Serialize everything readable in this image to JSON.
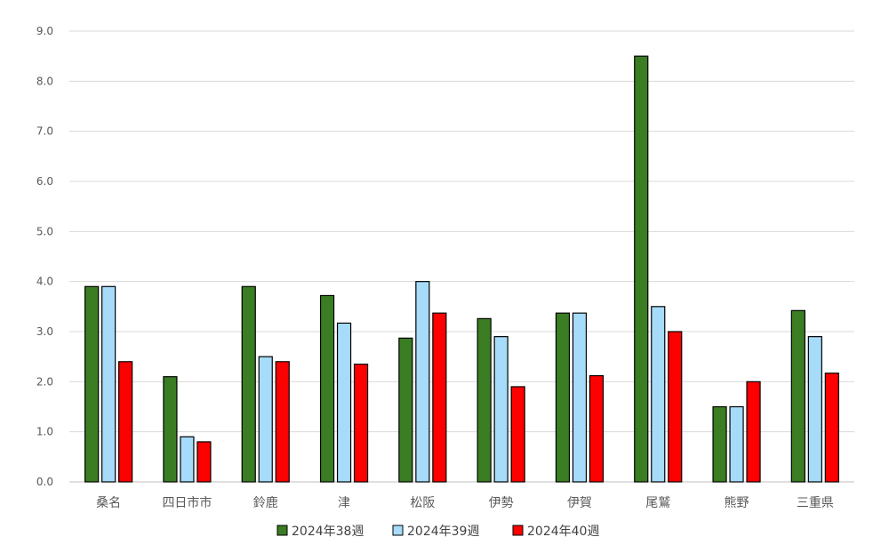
{
  "chart_data": {
    "type": "bar",
    "categories": [
      "桑名",
      "四日市市",
      "鈴鹿",
      "津",
      "松阪",
      "伊勢",
      "伊賀",
      "尾鷲",
      "熊野",
      "三重県"
    ],
    "series": [
      {
        "name": "2024年38週",
        "color": "#3a7d22",
        "values": [
          3.9,
          2.1,
          3.9,
          3.72,
          2.87,
          3.26,
          3.37,
          8.5,
          1.5,
          3.42
        ]
      },
      {
        "name": "2024年39週",
        "color": "#a6dcf9",
        "values": [
          3.9,
          0.9,
          2.5,
          3.17,
          4.0,
          2.9,
          3.37,
          3.5,
          1.5,
          2.9
        ]
      },
      {
        "name": "2024年40週",
        "color": "#ff0000",
        "values": [
          2.4,
          0.8,
          2.4,
          2.35,
          3.37,
          1.9,
          2.12,
          3.0,
          2.0,
          2.17
        ]
      }
    ],
    "yticks": [
      "0.0",
      "1.0",
      "2.0",
      "3.0",
      "4.0",
      "5.0",
      "6.0",
      "7.0",
      "8.0",
      "9.0"
    ],
    "ylim": [
      0,
      9
    ],
    "grid": true,
    "legend_position": "bottom"
  }
}
